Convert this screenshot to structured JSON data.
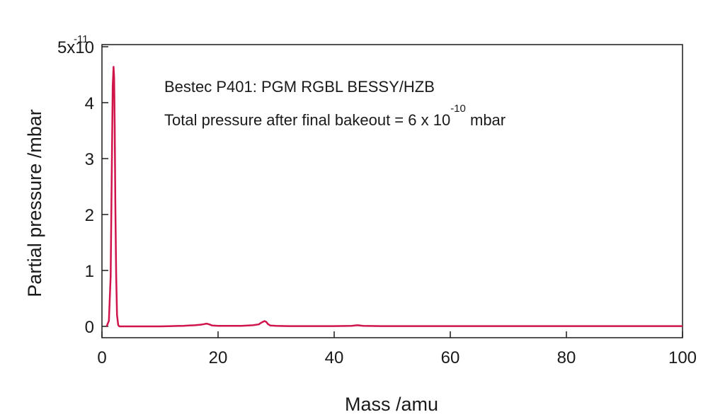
{
  "chart_data": {
    "type": "line",
    "xlabel": "Mass /amu",
    "ylabel": "Partial pressure /mbar",
    "xlim": [
      0,
      100
    ],
    "ylim": [
      0,
      5
    ],
    "x_ticks": [
      "0",
      "20",
      "40",
      "60",
      "80",
      "100"
    ],
    "y_ticks": [
      "0",
      "1",
      "2",
      "3",
      "4",
      "5x10"
    ],
    "y_scale_exponent": "-11",
    "grid": false,
    "line_color": "#d0154a",
    "annotations": {
      "line1": "Bestec P401: PGM RGBL BESSY/HZB",
      "line2_prefix": "Total pressure after final bakeout = 6 x 10",
      "line2_exponent": "-10",
      "line2_suffix": " mbar"
    },
    "series": [
      {
        "x": [
          0.8,
          1.2,
          1.5,
          1.7,
          1.85,
          2.0,
          2.1,
          2.2,
          2.3,
          2.45,
          2.6,
          2.8,
          3.0,
          3.3,
          4,
          6,
          8,
          10,
          12,
          14,
          15,
          16,
          17,
          17.6,
          18,
          18.5,
          19,
          20,
          22,
          24,
          26,
          27,
          27.5,
          28,
          28.3,
          28.6,
          29,
          30,
          32,
          36,
          40,
          43,
          44,
          45,
          48,
          50,
          60,
          70,
          80,
          90,
          100
        ],
        "y": [
          0,
          0.1,
          0.9,
          2.8,
          4.3,
          4.64,
          4.45,
          3.6,
          2.2,
          0.9,
          0.2,
          0.02,
          0,
          0,
          0,
          0,
          0,
          0,
          0.005,
          0.01,
          0.015,
          0.02,
          0.03,
          0.04,
          0.05,
          0.035,
          0.015,
          0.01,
          0.01,
          0.01,
          0.02,
          0.035,
          0.07,
          0.095,
          0.08,
          0.04,
          0.015,
          0.01,
          0.005,
          0.005,
          0.005,
          0.01,
          0.02,
          0.01,
          0.005,
          0.005,
          0.005,
          0.005,
          0.005,
          0.005,
          0.005
        ]
      }
    ]
  }
}
